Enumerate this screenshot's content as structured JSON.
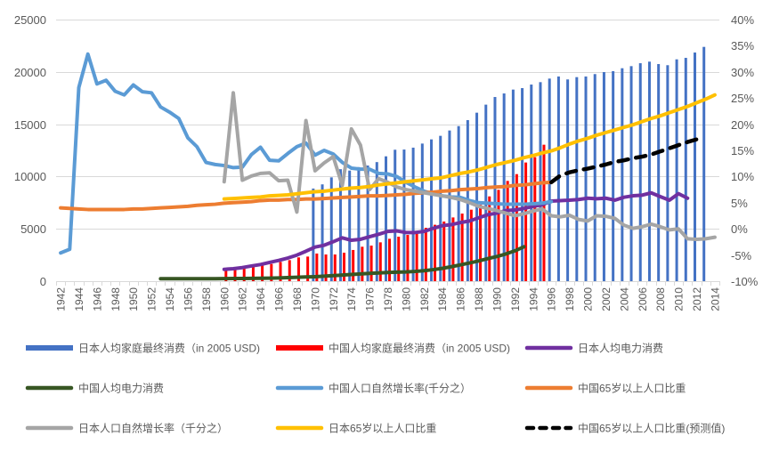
{
  "chart_data": {
    "type": "line",
    "title": "",
    "xlabel": "",
    "ylabel": "",
    "x_range": [
      1942,
      2014
    ],
    "x_ticks": [
      "1942",
      "1944",
      "1946",
      "1948",
      "1950",
      "1952",
      "1954",
      "1956",
      "1958",
      "1960",
      "1962",
      "1964",
      "1966",
      "1968",
      "1970",
      "1972",
      "1974",
      "1976",
      "1978",
      "1980",
      "1982",
      "1984",
      "1986",
      "1988",
      "1990",
      "1992",
      "1994",
      "1996",
      "1998",
      "2000",
      "2002",
      "2004",
      "2006",
      "2008",
      "2010",
      "2012",
      "2014"
    ],
    "y_left": {
      "min": 0,
      "max": 25000,
      "ticks": [
        0,
        5000,
        10000,
        15000,
        20000,
        25000
      ],
      "tick_labels": [
        "0",
        "5000",
        "10000",
        "15000",
        "20000",
        "25000"
      ]
    },
    "y_right": {
      "min": -10,
      "max": 40,
      "ticks": [
        -10,
        -5,
        0,
        5,
        10,
        15,
        20,
        25,
        30,
        35,
        40
      ],
      "tick_labels": [
        "-10%",
        "-5%",
        "0%",
        "5%",
        "10%",
        "15%",
        "20%",
        "25%",
        "30%",
        "35%",
        "40%"
      ]
    },
    "grid": true,
    "legend_position": "bottom",
    "series": [
      {
        "name": "日本人均家庭最终消费（in 2005 USD)",
        "type": "bar",
        "axis": "left",
        "color": "#4472C4",
        "start_year": 1970,
        "values": [
          8850,
          9250,
          9920,
          10700,
          10570,
          10900,
          11050,
          11380,
          11930,
          12560,
          12580,
          12760,
          13150,
          13550,
          13890,
          14400,
          14820,
          15390,
          16100,
          16870,
          17600,
          17940,
          18310,
          18450,
          18790,
          19020,
          19360,
          19560,
          19280,
          19500,
          19560,
          19790,
          19980,
          20070,
          20350,
          20550,
          20830,
          20980,
          20750,
          20640,
          21200,
          21340,
          21850,
          22390
        ]
      },
      {
        "name": "中国人均家庭最终消费（in 2005 USD)",
        "type": "bar",
        "axis": "left",
        "color": "#FF0000",
        "start_year": 1960,
        "values": [
          1130,
          1220,
          1300,
          1420,
          1500,
          1640,
          1840,
          2010,
          2270,
          2350,
          2640,
          2550,
          2550,
          2720,
          2980,
          3290,
          3400,
          3710,
          4050,
          4250,
          4420,
          4620,
          5100,
          5390,
          5700,
          6090,
          6460,
          6830,
          7310,
          8100,
          8730,
          9580,
          10230,
          11340,
          11850,
          13040
        ]
      },
      {
        "name": "日本人均电力消费",
        "type": "line",
        "axis": "left",
        "color": "#7030A0",
        "start_year": 1960,
        "values": [
          1130,
          1190,
          1300,
          1450,
          1590,
          1790,
          1980,
          2210,
          2490,
          2860,
          3260,
          3430,
          3770,
          4140,
          3910,
          4000,
          4250,
          4480,
          4750,
          4800,
          4650,
          4650,
          4750,
          5050,
          5300,
          5400,
          5600,
          5750,
          6050,
          6350,
          6500,
          6750,
          6800,
          6950,
          7150,
          7300,
          7650,
          7700,
          7740,
          7800,
          7930,
          7880,
          7930,
          7740,
          8020,
          8160,
          8220,
          8440,
          8080,
          7740,
          8360,
          7930
        ]
      },
      {
        "name": "中国人均电力消费",
        "type": "line",
        "axis": "left",
        "color": "#375623",
        "start_year": 1953,
        "values": [
          230,
          230,
          230,
          230,
          230,
          230,
          230,
          240,
          250,
          260,
          270,
          280,
          290,
          310,
          340,
          370,
          400,
          430,
          480,
          530,
          580,
          640,
          690,
          740,
          790,
          830,
          860,
          880,
          930,
          1000,
          1100,
          1220,
          1380,
          1560,
          1740,
          1930,
          2150,
          2350,
          2600,
          2900,
          3290
        ]
      },
      {
        "name": "中国人口自然增长率(千分之）",
        "type": "line",
        "axis": "right",
        "color": "#5B9BD5",
        "start_year": 1942,
        "values": [
          -4.6,
          -3.9,
          27.0,
          33.4,
          27.7,
          28.4,
          26.3,
          25.6,
          27.5,
          26.2,
          26.0,
          23.3,
          22.3,
          21.1,
          17.4,
          15.7,
          12.7,
          12.3,
          12.1,
          11.7,
          11.8,
          14.2,
          15.6,
          13.1,
          13.0,
          14.4,
          15.7,
          16.4,
          14.1,
          15.0,
          14.3,
          12.7,
          11.6,
          11.4,
          11.4,
          10.6,
          10.5,
          10.0,
          8.9,
          8.0,
          7.2,
          6.7,
          6.3,
          6.1,
          6.0,
          5.4,
          5.0,
          4.9,
          4.8,
          4.7,
          4.7,
          4.7,
          4.8,
          4.9,
          5.2
        ]
      },
      {
        "name": "中国65岁以上人口比重",
        "type": "line",
        "axis": "right",
        "color": "#ED7D31",
        "start_year": 1942,
        "values": [
          4.0,
          3.9,
          3.8,
          3.7,
          3.7,
          3.7,
          3.7,
          3.7,
          3.8,
          3.8,
          3.9,
          4.0,
          4.1,
          4.2,
          4.3,
          4.5,
          4.6,
          4.7,
          4.9,
          5.0,
          5.1,
          5.2,
          5.4,
          5.5,
          5.5,
          5.6,
          5.6,
          5.7,
          5.7,
          5.8,
          5.9,
          6.0,
          6.1,
          6.2,
          6.3,
          6.3,
          6.4,
          6.5,
          6.6,
          6.8,
          6.9,
          7.0,
          7.2,
          7.3,
          7.5,
          7.6,
          7.7,
          7.9,
          8.0,
          8.1,
          8.3,
          8.4,
          8.6,
          8.8,
          8.9
        ]
      },
      {
        "name": "日本人口自然增长率（千分之）",
        "type": "line",
        "axis": "right",
        "color": "#A5A5A5",
        "start_year": 1960,
        "values": [
          9.0,
          26.0,
          9.3,
          10.1,
          10.6,
          10.7,
          9.2,
          9.3,
          3.2,
          20.7,
          11.1,
          12.6,
          13.8,
          8.3,
          19.1,
          16.0,
          7.5,
          9.6,
          8.9,
          8.0,
          7.5,
          7.2,
          6.9,
          6.6,
          6.3,
          6.0,
          5.6,
          5.0,
          4.3,
          3.9,
          3.5,
          3.0,
          2.5,
          2.9,
          3.4,
          3.8,
          2.5,
          2.3,
          2.6,
          1.8,
          1.5,
          2.5,
          2.4,
          2.0,
          0.7,
          0.1,
          0.4,
          0.9,
          0.4,
          -0.2,
          0.0,
          -1.9,
          -2.0,
          -1.9,
          -1.6
        ]
      },
      {
        "name": "日本65岁以上人口比重",
        "type": "line",
        "axis": "right",
        "color": "#FFC000",
        "start_year": 1960,
        "values": [
          5.7,
          5.8,
          5.9,
          6.0,
          6.1,
          6.3,
          6.4,
          6.5,
          6.7,
          6.9,
          7.1,
          7.2,
          7.4,
          7.6,
          7.8,
          7.9,
          8.1,
          8.4,
          8.6,
          8.8,
          9.0,
          9.2,
          9.4,
          9.6,
          9.8,
          10.2,
          10.6,
          10.9,
          11.3,
          11.8,
          12.3,
          12.7,
          13.1,
          13.6,
          14.0,
          14.5,
          14.9,
          15.5,
          16.2,
          16.8,
          17.3,
          17.9,
          18.4,
          18.9,
          19.4,
          19.9,
          20.5,
          21.1,
          21.6,
          22.2,
          22.8,
          23.4,
          24.1,
          24.8,
          25.6
        ]
      },
      {
        "name": "中国65岁以上人口比重(预测值)",
        "type": "line",
        "style": "dashed",
        "axis": "right",
        "color": "#000000",
        "start_year": 1996,
        "values": [
          8.9,
          10.2,
          10.8,
          11.2,
          11.5,
          11.9,
          12.3,
          12.8,
          13.1,
          13.5,
          13.8,
          14.2,
          14.8,
          15.4,
          16.0,
          16.6,
          17.1
        ]
      }
    ]
  }
}
